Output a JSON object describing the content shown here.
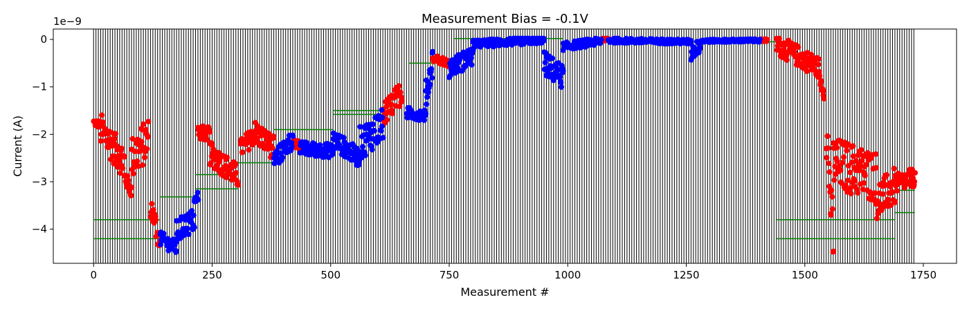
{
  "chart_data": {
    "type": "scatter",
    "title": "Measurement Bias = -0.1V",
    "xlabel": "Measurement #",
    "ylabel": "Current (A)",
    "offset_label": "1e−9",
    "xlim": [
      -85,
      1820
    ],
    "ylim": [
      -4.72,
      0.22
    ],
    "y_scale_factor": 1e-09,
    "grid": false,
    "legend": "none",
    "x_ticks": [
      0,
      250,
      500,
      750,
      1000,
      1250,
      1500,
      1750
    ],
    "x_tick_labels": [
      "0",
      "250",
      "500",
      "750",
      "1000",
      "1250",
      "1500",
      "1750"
    ],
    "y_ticks": [
      0,
      -1,
      -2,
      -3,
      -4
    ],
    "y_tick_labels": [
      "0",
      "−1",
      "−2",
      "−3",
      "−4"
    ],
    "colors": {
      "red_series": "#ff0000",
      "blue_series": "#0000ff",
      "reference_lines": "#008000",
      "separators": "#000000"
    },
    "separators": {
      "start": 0,
      "end": 1732,
      "step": 5
    },
    "reference_lines": [
      {
        "x0": 0,
        "x1": 140,
        "y": -3.8
      },
      {
        "x0": 0,
        "x1": 140,
        "y": -4.2
      },
      {
        "x0": 140,
        "x1": 215,
        "y": -3.32
      },
      {
        "x0": 215,
        "x1": 305,
        "y": -3.15
      },
      {
        "x0": 215,
        "x1": 305,
        "y": -2.85
      },
      {
        "x0": 305,
        "x1": 380,
        "y": -2.6
      },
      {
        "x0": 380,
        "x1": 505,
        "y": -1.9
      },
      {
        "x0": 505,
        "x1": 610,
        "y": -1.5
      },
      {
        "x0": 505,
        "x1": 610,
        "y": -1.58
      },
      {
        "x0": 665,
        "x1": 760,
        "y": -0.5
      },
      {
        "x0": 760,
        "x1": 990,
        "y": 0.02
      },
      {
        "x0": 1060,
        "x1": 1440,
        "y": -0.05
      },
      {
        "x0": 1440,
        "x1": 1690,
        "y": -3.8
      },
      {
        "x0": 1440,
        "x1": 1690,
        "y": -4.2
      },
      {
        "x0": 1690,
        "x1": 1732,
        "y": -3.18
      },
      {
        "x0": 1690,
        "x1": 1732,
        "y": -3.65
      }
    ],
    "series": [
      {
        "color": "red",
        "segments": [
          {
            "x0": 0,
            "x1": 15,
            "y0": -1.75,
            "y1": -1.8,
            "spread": 0.08
          },
          {
            "x0": 15,
            "x1": 65,
            "y0": -1.9,
            "y1": -2.6,
            "spread": 0.35
          },
          {
            "x0": 65,
            "x1": 80,
            "y0": -2.9,
            "y1": -3.2,
            "spread": 0.15
          },
          {
            "x0": 80,
            "x1": 115,
            "y0": -2.5,
            "y1": -2.1,
            "spread": 0.45
          },
          {
            "x0": 120,
            "x1": 140,
            "y0": -3.5,
            "y1": -4.3,
            "spread": 0.25
          },
          {
            "x0": 220,
            "x1": 245,
            "y0": -1.95,
            "y1": -2.0,
            "spread": 0.15
          },
          {
            "x0": 245,
            "x1": 305,
            "y0": -2.4,
            "y1": -2.9,
            "spread": 0.25
          },
          {
            "x0": 310,
            "x1": 340,
            "y0": -2.3,
            "y1": -2.0,
            "spread": 0.2
          },
          {
            "x0": 340,
            "x1": 380,
            "y0": -1.95,
            "y1": -2.3,
            "spread": 0.25
          },
          {
            "x0": 420,
            "x1": 435,
            "y0": -2.2,
            "y1": -2.25,
            "spread": 0.1
          },
          {
            "x0": 610,
            "x1": 650,
            "y0": -1.6,
            "y1": -1.1,
            "spread": 0.25
          },
          {
            "x0": 715,
            "x1": 750,
            "y0": -0.38,
            "y1": -0.5,
            "spread": 0.08
          },
          {
            "x0": 1070,
            "x1": 1085,
            "y0": 0.0,
            "y1": 0.0,
            "spread": 0.03
          },
          {
            "x0": 1405,
            "x1": 1420,
            "y0": -0.02,
            "y1": -0.02,
            "spread": 0.03
          },
          {
            "x0": 1440,
            "x1": 1530,
            "y0": -0.1,
            "y1": -0.6,
            "spread": 0.22
          },
          {
            "x0": 1530,
            "x1": 1540,
            "y0": -0.8,
            "y1": -1.1,
            "spread": 0.15
          },
          {
            "x0": 1545,
            "x1": 1560,
            "y0": -1.8,
            "y1": -4.4,
            "spread": 0.6
          },
          {
            "x0": 1560,
            "x1": 1650,
            "y0": -2.6,
            "y1": -2.9,
            "spread": 0.55
          },
          {
            "x0": 1650,
            "x1": 1690,
            "y0": -3.4,
            "y1": -3.1,
            "spread": 0.4
          },
          {
            "x0": 1690,
            "x1": 1732,
            "y0": -3.05,
            "y1": -2.9,
            "spread": 0.2
          }
        ]
      },
      {
        "color": "blue",
        "segments": [
          {
            "x0": 140,
            "x1": 175,
            "y0": -4.2,
            "y1": -4.4,
            "spread": 0.15
          },
          {
            "x0": 175,
            "x1": 212,
            "y0": -4.05,
            "y1": -3.8,
            "spread": 0.25
          },
          {
            "x0": 212,
            "x1": 220,
            "y0": -3.45,
            "y1": -3.3,
            "spread": 0.12
          },
          {
            "x0": 380,
            "x1": 420,
            "y0": -2.55,
            "y1": -2.1,
            "spread": 0.2
          },
          {
            "x0": 435,
            "x1": 505,
            "y0": -2.3,
            "y1": -2.35,
            "spread": 0.15
          },
          {
            "x0": 505,
            "x1": 560,
            "y0": -2.1,
            "y1": -2.5,
            "spread": 0.2
          },
          {
            "x0": 560,
            "x1": 610,
            "y0": -2.2,
            "y1": -1.8,
            "spread": 0.35
          },
          {
            "x0": 660,
            "x1": 700,
            "y0": -1.55,
            "y1": -1.6,
            "spread": 0.12
          },
          {
            "x0": 700,
            "x1": 715,
            "y0": -1.2,
            "y1": -0.45,
            "spread": 0.3
          },
          {
            "x0": 750,
            "x1": 800,
            "y0": -0.6,
            "y1": -0.35,
            "spread": 0.2
          },
          {
            "x0": 800,
            "x1": 950,
            "y0": -0.1,
            "y1": 0.0,
            "spread": 0.08
          },
          {
            "x0": 950,
            "x1": 990,
            "y0": -0.5,
            "y1": -0.8,
            "spread": 0.25
          },
          {
            "x0": 990,
            "x1": 1070,
            "y0": -0.15,
            "y1": -0.03,
            "spread": 0.08
          },
          {
            "x0": 1085,
            "x1": 1260,
            "y0": -0.02,
            "y1": -0.05,
            "spread": 0.05
          },
          {
            "x0": 1260,
            "x1": 1280,
            "y0": -0.3,
            "y1": -0.1,
            "spread": 0.15
          },
          {
            "x0": 1280,
            "x1": 1405,
            "y0": -0.03,
            "y1": -0.02,
            "spread": 0.03
          }
        ]
      }
    ]
  }
}
